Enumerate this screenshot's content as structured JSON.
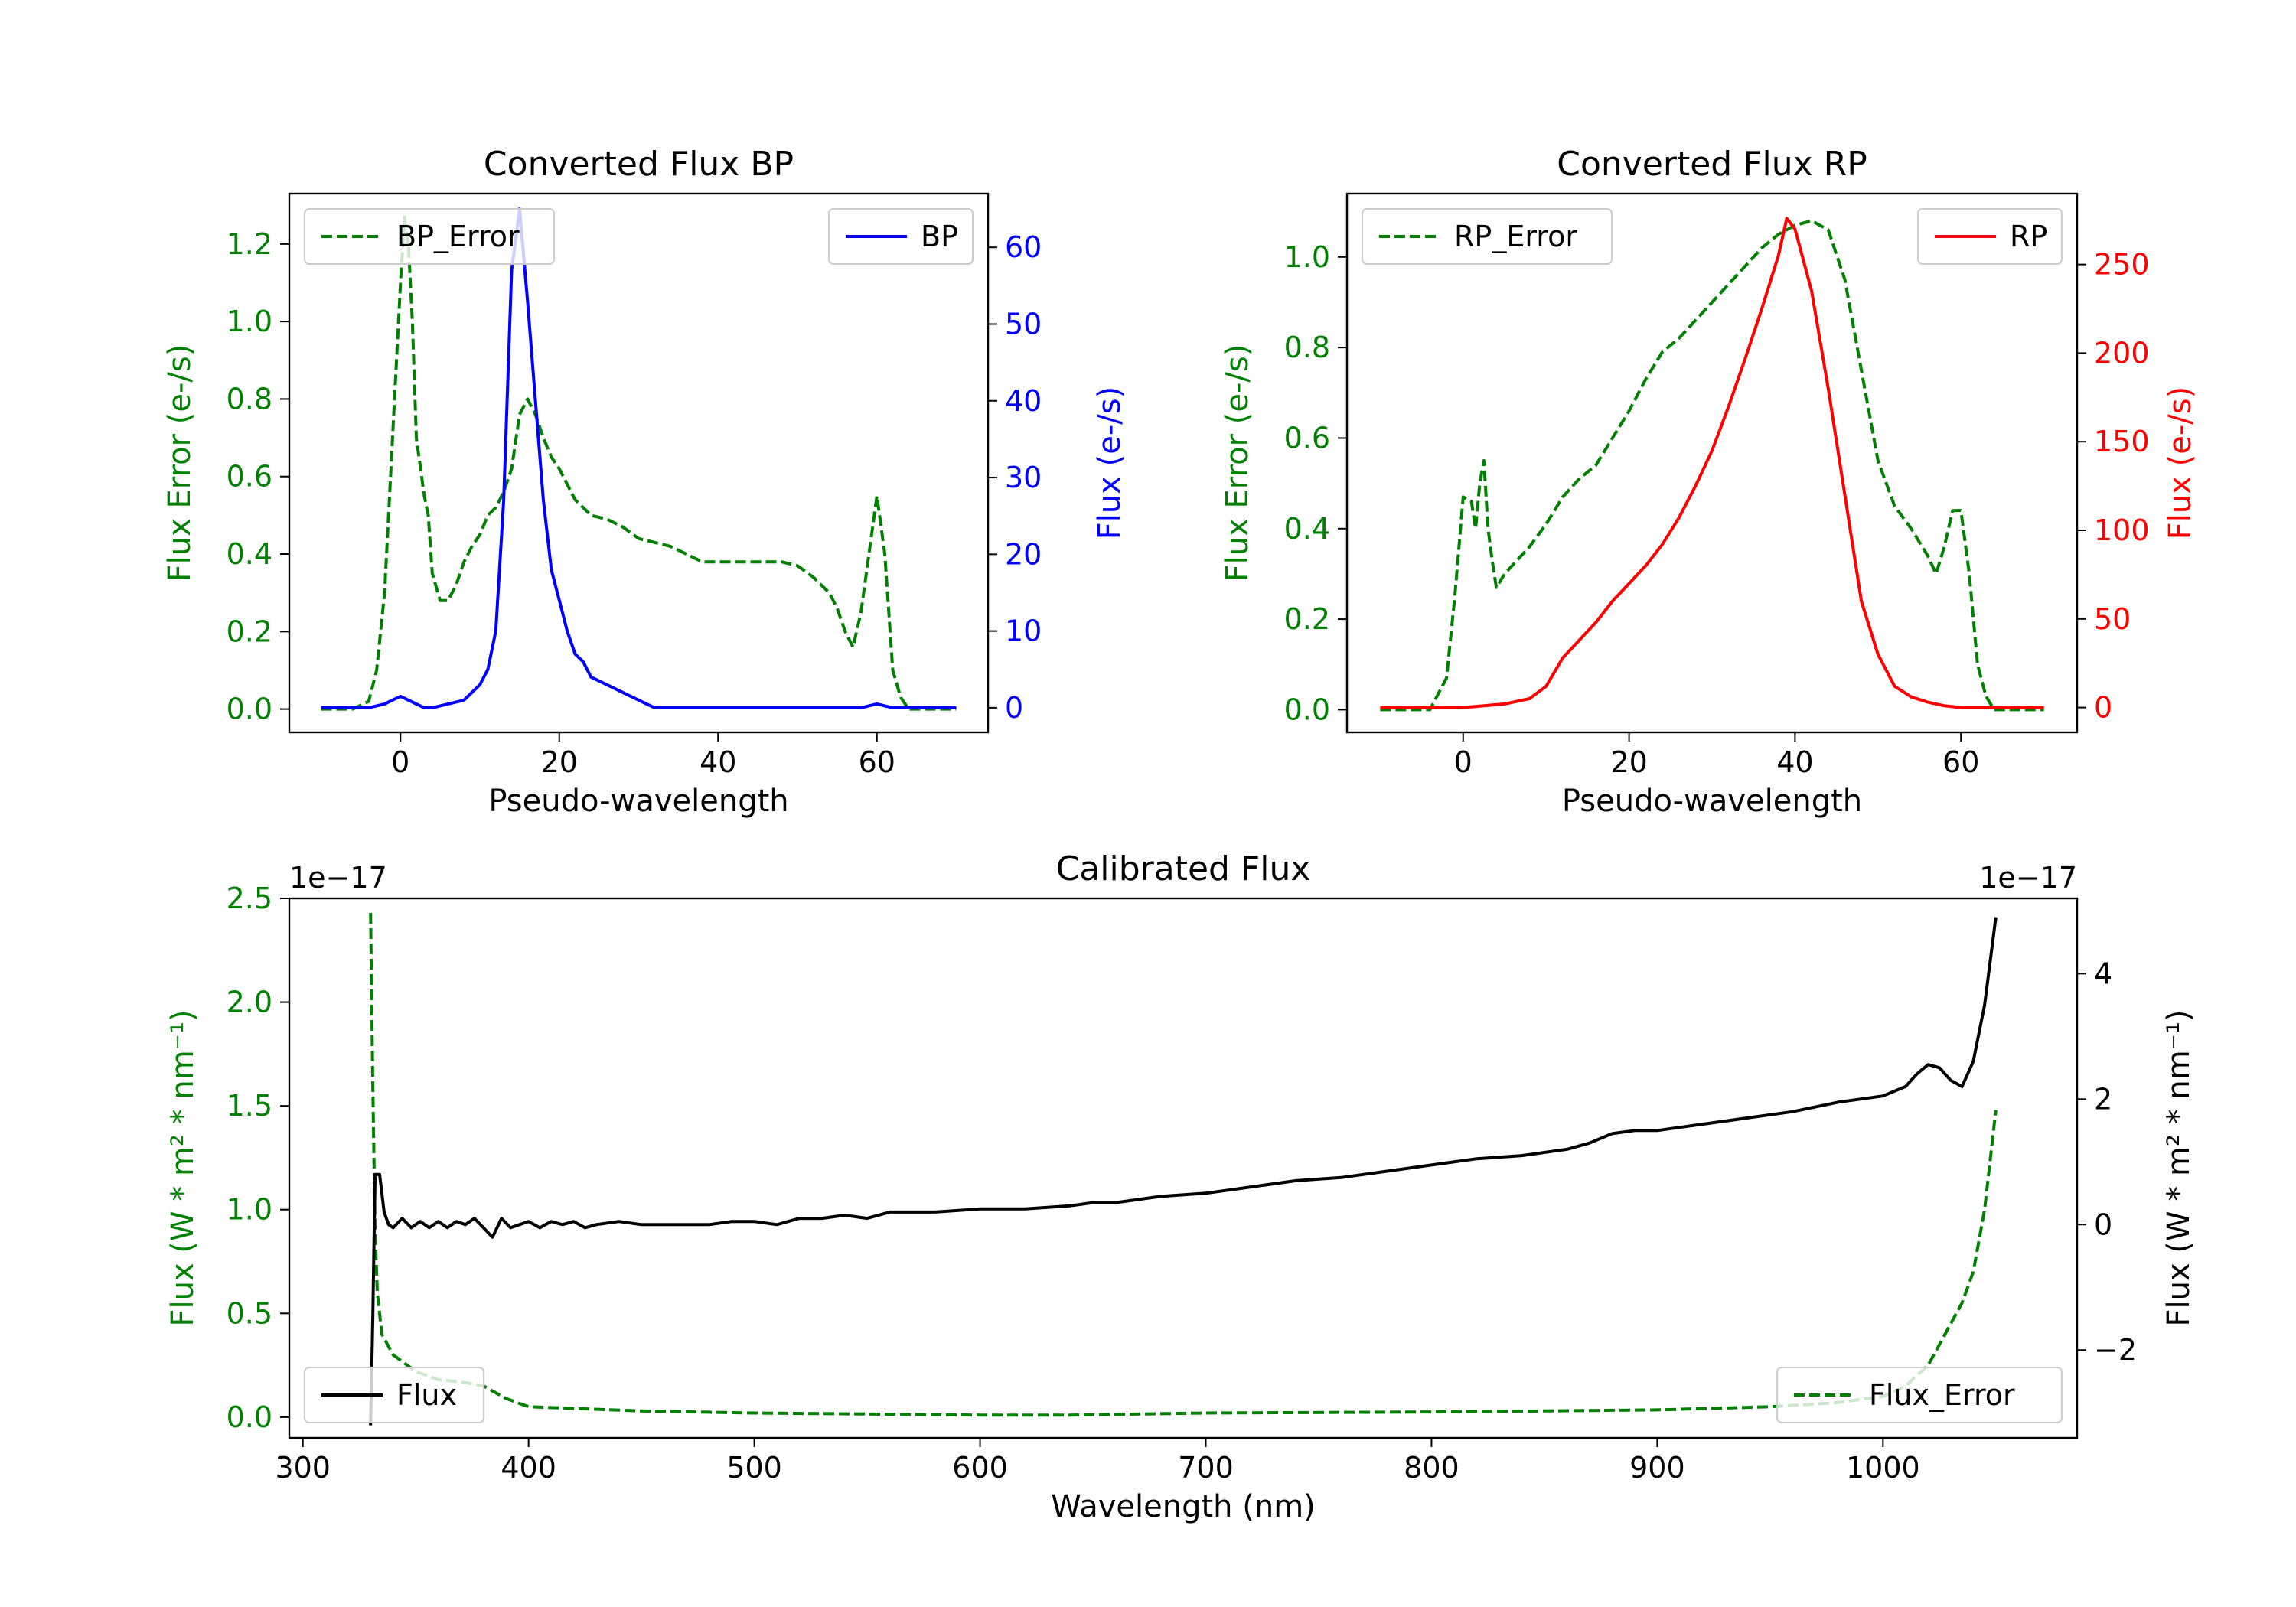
{
  "colors": {
    "green": "#008000",
    "blue": "#0000ff",
    "red": "#ff0000",
    "black": "#000000"
  },
  "chart_data": [
    {
      "type": "line",
      "title": "Converted Flux BP",
      "xlabel": "Pseudo-wavelength",
      "ylabel_left": "Flux Error (e-/s)",
      "ylabel_right": "Flux (e-/s)",
      "xlim": [
        -14,
        74
      ],
      "x_ticks": [
        0,
        20,
        40,
        60
      ],
      "ylim_left": [
        -0.06,
        1.33
      ],
      "y_ticks_left": [
        "0.0",
        "0.2",
        "0.4",
        "0.6",
        "0.8",
        "1.0",
        "1.2"
      ],
      "ylim_right": [
        -3.2,
        67.0
      ],
      "y_ticks_right": [
        "0",
        "10",
        "20",
        "30",
        "40",
        "50",
        "60"
      ],
      "series": [
        {
          "name": "BP_Error",
          "axis": "left",
          "color": "#008000",
          "style": "dashed",
          "legend": "top-left",
          "x": [
            -10,
            -8,
            -6,
            -4,
            -3,
            -2,
            -1,
            0,
            0.5,
            1,
            1.5,
            2,
            3,
            3.5,
            4,
            5,
            6,
            7,
            8,
            9,
            10,
            11,
            12,
            13,
            14,
            15,
            16,
            17,
            18,
            19,
            20,
            22,
            24,
            26,
            28,
            30,
            32,
            34,
            36,
            38,
            40,
            42,
            44,
            46,
            48,
            50,
            52,
            54,
            55,
            56,
            57,
            58,
            59,
            60,
            61,
            62,
            63,
            64,
            66,
            68,
            70
          ],
          "y": [
            0.0,
            0.0,
            0.0,
            0.02,
            0.1,
            0.3,
            0.7,
            1.1,
            1.27,
            1.2,
            1.0,
            0.7,
            0.55,
            0.5,
            0.35,
            0.28,
            0.28,
            0.32,
            0.38,
            0.42,
            0.45,
            0.5,
            0.52,
            0.56,
            0.62,
            0.76,
            0.8,
            0.76,
            0.7,
            0.65,
            0.62,
            0.54,
            0.5,
            0.49,
            0.47,
            0.44,
            0.43,
            0.42,
            0.4,
            0.38,
            0.38,
            0.38,
            0.38,
            0.38,
            0.38,
            0.37,
            0.34,
            0.3,
            0.26,
            0.2,
            0.16,
            0.25,
            0.4,
            0.55,
            0.4,
            0.1,
            0.03,
            0.0,
            0.0,
            0.0,
            0.0
          ]
        },
        {
          "name": "BP",
          "axis": "right",
          "color": "#0000ff",
          "style": "solid",
          "legend": "top-right",
          "x": [
            -10,
            -6,
            -4,
            -2,
            0,
            1,
            2,
            3,
            4,
            6,
            8,
            10,
            11,
            12,
            13,
            14,
            15,
            16,
            17,
            18,
            19,
            20,
            21,
            22,
            23,
            24,
            26,
            28,
            30,
            32,
            33,
            34,
            36,
            38,
            40,
            42,
            44,
            46,
            48,
            50,
            52,
            54,
            56,
            58,
            60,
            62,
            66,
            70
          ],
          "y": [
            0,
            0,
            0,
            0.5,
            1.5,
            1.0,
            0.5,
            0,
            0,
            0.5,
            1,
            3,
            5,
            10,
            27,
            57,
            65,
            53,
            40,
            27,
            18,
            14,
            10,
            7,
            6,
            4,
            3,
            2,
            1,
            0,
            0,
            0,
            0,
            0,
            0,
            0,
            0,
            0,
            0,
            0,
            0,
            0,
            0,
            0,
            0.5,
            0,
            0,
            0
          ]
        }
      ]
    },
    {
      "type": "line",
      "title": "Converted Flux RP",
      "xlabel": "Pseudo-wavelength",
      "ylabel_left": "Flux Error (e-/s)",
      "ylabel_right": "Flux (e-/s)",
      "xlim": [
        -14,
        74
      ],
      "x_ticks": [
        0,
        20,
        40,
        60
      ],
      "ylim_left": [
        -0.05,
        1.14
      ],
      "y_ticks_left": [
        "0.0",
        "0.2",
        "0.4",
        "0.6",
        "0.8",
        "1.0"
      ],
      "ylim_right": [
        -14,
        290
      ],
      "y_ticks_right": [
        "0",
        "50",
        "100",
        "150",
        "200",
        "250"
      ],
      "series": [
        {
          "name": "RP_Error",
          "axis": "left",
          "color": "#008000",
          "style": "dashed",
          "legend": "top-left",
          "x": [
            -10,
            -6,
            -4,
            -2,
            -1,
            0,
            1,
            1.5,
            2,
            2.5,
            3,
            3.5,
            4,
            5,
            6,
            8,
            10,
            12,
            14,
            16,
            18,
            20,
            22,
            24,
            26,
            28,
            30,
            32,
            34,
            36,
            38,
            40,
            42,
            44,
            46,
            48,
            50,
            52,
            54,
            56,
            57,
            58,
            59,
            60,
            61,
            62,
            63,
            64,
            66,
            68,
            70
          ],
          "y": [
            0.0,
            0.0,
            0.0,
            0.07,
            0.25,
            0.47,
            0.46,
            0.4,
            0.5,
            0.55,
            0.4,
            0.33,
            0.27,
            0.3,
            0.32,
            0.36,
            0.41,
            0.47,
            0.51,
            0.54,
            0.6,
            0.66,
            0.73,
            0.79,
            0.82,
            0.86,
            0.9,
            0.94,
            0.98,
            1.02,
            1.05,
            1.07,
            1.08,
            1.06,
            0.95,
            0.75,
            0.55,
            0.45,
            0.4,
            0.34,
            0.3,
            0.36,
            0.44,
            0.44,
            0.3,
            0.1,
            0.03,
            0.0,
            0.0,
            0.0,
            0.0
          ]
        },
        {
          "name": "RP",
          "axis": "right",
          "color": "#ff0000",
          "style": "solid",
          "legend": "top-right",
          "x": [
            -10,
            -5,
            0,
            5,
            8,
            10,
            12,
            14,
            16,
            18,
            20,
            22,
            24,
            26,
            28,
            30,
            32,
            34,
            36,
            38,
            39,
            40,
            42,
            44,
            46,
            48,
            50,
            52,
            54,
            56,
            58,
            60,
            62,
            64,
            66,
            70
          ],
          "y": [
            0,
            0,
            0,
            2,
            5,
            12,
            28,
            38,
            48,
            60,
            70,
            80,
            92,
            107,
            125,
            145,
            170,
            197,
            225,
            255,
            276,
            270,
            235,
            180,
            120,
            60,
            30,
            12,
            6,
            3,
            1,
            0,
            0,
            0,
            0,
            0
          ]
        }
      ]
    },
    {
      "type": "line",
      "title": "Calibrated Flux",
      "xlabel": "Wavelength (nm)",
      "ylabel_left": "Flux (W * m² * nm⁻¹)",
      "ylabel_right": "Flux (W * m² * nm⁻¹)",
      "offset_left": "1e−17",
      "offset_right": "1e−17",
      "xlim": [
        294,
        1086
      ],
      "x_ticks": [
        300,
        400,
        500,
        600,
        700,
        800,
        900,
        1000
      ],
      "ylim_left": [
        -0.1,
        2.5
      ],
      "y_ticks_left": [
        "0.0",
        "0.5",
        "1.0",
        "1.5",
        "2.0",
        "2.5"
      ],
      "ylim_right": [
        -3.4,
        5.2
      ],
      "y_ticks_right": [
        {
          "v": -2,
          "label": "−2"
        },
        {
          "v": 0,
          "label": "0"
        },
        {
          "v": 2,
          "label": "2"
        },
        {
          "v": 4,
          "label": "4"
        }
      ],
      "series": [
        {
          "name": "Flux_Error",
          "axis": "left",
          "color": "#008000",
          "style": "dashed",
          "legend": "bottom-right",
          "x": [
            330,
            331,
            332,
            333,
            335,
            340,
            350,
            360,
            370,
            380,
            390,
            400,
            450,
            500,
            550,
            600,
            640,
            700,
            800,
            900,
            950,
            980,
            1000,
            1010,
            1020,
            1025,
            1030,
            1035,
            1040,
            1045,
            1050
          ],
          "y": [
            2.43,
            1.6,
            0.9,
            0.6,
            0.4,
            0.3,
            0.22,
            0.18,
            0.17,
            0.15,
            0.09,
            0.05,
            0.03,
            0.02,
            0.015,
            0.01,
            0.01,
            0.02,
            0.025,
            0.035,
            0.05,
            0.07,
            0.1,
            0.15,
            0.25,
            0.35,
            0.45,
            0.55,
            0.7,
            1.0,
            1.48
          ]
        },
        {
          "name": "Flux",
          "axis": "right",
          "color": "#000000",
          "style": "solid",
          "legend": "bottom-left",
          "x": [
            330,
            331,
            332,
            334,
            336,
            338,
            340,
            344,
            348,
            352,
            356,
            360,
            364,
            368,
            372,
            376,
            380,
            384,
            388,
            392,
            396,
            400,
            405,
            410,
            415,
            420,
            425,
            430,
            440,
            450,
            460,
            470,
            480,
            490,
            500,
            510,
            520,
            530,
            540,
            550,
            560,
            580,
            600,
            620,
            640,
            650,
            660,
            670,
            680,
            700,
            720,
            740,
            760,
            780,
            800,
            820,
            840,
            860,
            870,
            880,
            890,
            900,
            910,
            920,
            940,
            960,
            980,
            990,
            1000,
            1010,
            1015,
            1020,
            1025,
            1030,
            1035,
            1040,
            1045,
            1050
          ],
          "y": [
            -3.2,
            -1.5,
            0.8,
            0.8,
            0.2,
            0.0,
            -0.05,
            0.1,
            -0.05,
            0.05,
            -0.05,
            0.05,
            -0.05,
            0.05,
            0.0,
            0.1,
            -0.05,
            -0.2,
            0.1,
            -0.05,
            0.0,
            0.05,
            -0.05,
            0.05,
            0.0,
            0.05,
            -0.05,
            0.0,
            0.05,
            0.0,
            0.0,
            0.0,
            0.0,
            0.05,
            0.05,
            0.0,
            0.1,
            0.1,
            0.15,
            0.1,
            0.2,
            0.2,
            0.25,
            0.25,
            0.3,
            0.35,
            0.35,
            0.4,
            0.45,
            0.5,
            0.6,
            0.7,
            0.75,
            0.85,
            0.95,
            1.05,
            1.1,
            1.2,
            1.3,
            1.45,
            1.5,
            1.5,
            1.55,
            1.6,
            1.7,
            1.8,
            1.95,
            2.0,
            2.05,
            2.2,
            2.4,
            2.55,
            2.5,
            2.3,
            2.2,
            2.6,
            3.5,
            4.9
          ]
        }
      ]
    }
  ]
}
